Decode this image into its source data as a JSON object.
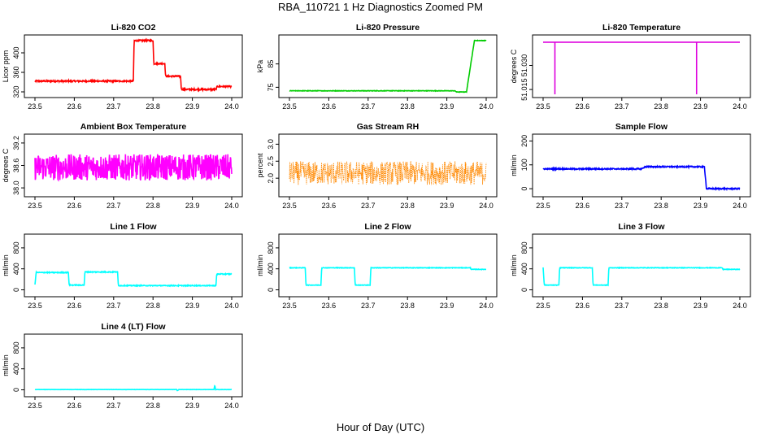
{
  "title": "RBA_110721  1 Hz Diagnostics Zoomed PM",
  "xlabel": "Hour of Day (UTC)",
  "chart_data": [
    {
      "type": "line",
      "title": "Li-820 CO2",
      "ylabel": "Licor ppm",
      "color": "#ff0000",
      "xlim": [
        23.5,
        24.0
      ],
      "ylim": [
        315,
        430
      ],
      "xticks": [
        "23.5",
        "23.6",
        "23.7",
        "23.8",
        "23.9",
        "24.0"
      ],
      "yticks": [
        320,
        360,
        400
      ],
      "segments": [
        [
          23.5,
          342
        ],
        [
          23.75,
          342
        ],
        [
          23.752,
          425
        ],
        [
          23.8,
          425
        ],
        [
          23.802,
          378
        ],
        [
          23.83,
          378
        ],
        [
          23.832,
          352
        ],
        [
          23.87,
          352
        ],
        [
          23.872,
          325
        ],
        [
          23.96,
          325
        ],
        [
          23.963,
          331
        ],
        [
          24.0,
          331
        ]
      ],
      "noise": 1.5
    },
    {
      "type": "line",
      "title": "Li-820 Pressure",
      "ylabel": "kPa",
      "color": "#00cc00",
      "xlim": [
        23.5,
        24.0
      ],
      "ylim": [
        72,
        96
      ],
      "xticks": [
        "23.5",
        "23.6",
        "23.7",
        "23.8",
        "23.9",
        "24.0"
      ],
      "yticks": [
        75,
        85
      ],
      "segments": [
        [
          23.5,
          73.5
        ],
        [
          23.92,
          73.5
        ],
        [
          23.925,
          73
        ],
        [
          23.95,
          73
        ],
        [
          23.97,
          95
        ],
        [
          24.0,
          95
        ]
      ],
      "noise": 0.1
    },
    {
      "type": "line",
      "title": "Li-820 Temperature",
      "ylabel": "degrees C",
      "color": "#dd00dd",
      "xlim": [
        23.5,
        24.0
      ],
      "ylim": [
        51.012,
        51.047
      ],
      "xticks": [
        "23.5",
        "23.6",
        "23.7",
        "23.8",
        "23.9",
        "24.0"
      ],
      "yticks": [
        "51.015",
        "51.030"
      ],
      "segments": [
        [
          23.5,
          51.0445
        ],
        [
          24.0,
          51.0445
        ]
      ],
      "spikes": [
        [
          23.53,
          51.012
        ],
        [
          23.89,
          51.012
        ]
      ],
      "noise": 0.0
    },
    {
      "type": "line",
      "title": "Ambient Box Temperature",
      "ylabel": "degrees C",
      "color": "#ff00ff",
      "xlim": [
        23.5,
        24.0
      ],
      "ylim": [
        37.85,
        39.35
      ],
      "xticks": [
        "23.5",
        "23.6",
        "23.7",
        "23.8",
        "23.9",
        "24.0"
      ],
      "yticks": [
        "38.0",
        "38.6",
        "39.2"
      ],
      "segments": [
        [
          23.5,
          38.55
        ],
        [
          24.0,
          38.55
        ]
      ],
      "noise": 0.35
    },
    {
      "type": "line",
      "title": "Gas Stream RH",
      "ylabel": "percent",
      "color": "#ff8800",
      "xlim": [
        23.5,
        24.0
      ],
      "ylim": [
        1.55,
        3.2
      ],
      "xticks": [
        "23.5",
        "23.6",
        "23.7",
        "23.8",
        "23.9",
        "24.0"
      ],
      "yticks": [
        "2.0",
        "2.5",
        "3.0"
      ],
      "segments": [
        [
          23.5,
          2.15
        ],
        [
          24.0,
          2.15
        ]
      ],
      "noise": 0.35,
      "points": true
    },
    {
      "type": "line",
      "title": "Sample Flow",
      "ylabel": "ml/min",
      "color": "#0000ff",
      "xlim": [
        23.5,
        24.0
      ],
      "ylim": [
        -20,
        215
      ],
      "xticks": [
        "23.5",
        "23.6",
        "23.7",
        "23.8",
        "23.9",
        "24.0"
      ],
      "yticks": [
        0,
        100,
        200
      ],
      "segments": [
        [
          23.5,
          83
        ],
        [
          23.75,
          83
        ],
        [
          23.76,
          92
        ],
        [
          23.91,
          92
        ],
        [
          23.915,
          0
        ],
        [
          24.0,
          0
        ]
      ],
      "noise": 2.5
    },
    {
      "type": "line",
      "title": "Line 1 Flow",
      "ylabel": "ml/min",
      "color": "#00ffff",
      "xlim": [
        23.5,
        24.0
      ],
      "ylim": [
        -70,
        1000
      ],
      "xticks": [
        "23.5",
        "23.6",
        "23.7",
        "23.8",
        "23.9",
        "24.0"
      ],
      "yticks": [
        0,
        400,
        800
      ],
      "segments": [
        [
          23.5,
          100
        ],
        [
          23.503,
          330
        ],
        [
          23.585,
          330
        ],
        [
          23.587,
          90
        ],
        [
          23.625,
          90
        ],
        [
          23.627,
          340
        ],
        [
          23.71,
          340
        ],
        [
          23.712,
          80
        ],
        [
          23.96,
          80
        ],
        [
          23.962,
          300
        ],
        [
          24.0,
          300
        ]
      ],
      "noise": 8
    },
    {
      "type": "line",
      "title": "Line 2 Flow",
      "ylabel": "ml/min",
      "color": "#00ffff",
      "xlim": [
        23.5,
        24.0
      ],
      "ylim": [
        -70,
        1000
      ],
      "xticks": [
        "23.5",
        "23.6",
        "23.7",
        "23.8",
        "23.9",
        "24.0"
      ],
      "yticks": [
        0,
        400,
        800
      ],
      "segments": [
        [
          23.5,
          420
        ],
        [
          23.54,
          420
        ],
        [
          23.542,
          90
        ],
        [
          23.58,
          90
        ],
        [
          23.582,
          420
        ],
        [
          23.665,
          420
        ],
        [
          23.667,
          90
        ],
        [
          23.705,
          90
        ],
        [
          23.707,
          420
        ],
        [
          23.96,
          420
        ],
        [
          23.962,
          390
        ],
        [
          24.0,
          390
        ]
      ],
      "noise": 5
    },
    {
      "type": "line",
      "title": "Line 3 Flow",
      "ylabel": "ml/min",
      "color": "#00ffff",
      "xlim": [
        23.5,
        24.0
      ],
      "ylim": [
        -70,
        1000
      ],
      "xticks": [
        "23.5",
        "23.6",
        "23.7",
        "23.8",
        "23.9",
        "24.0"
      ],
      "yticks": [
        0,
        400,
        800
      ],
      "segments": [
        [
          23.5,
          430
        ],
        [
          23.503,
          90
        ],
        [
          23.54,
          90
        ],
        [
          23.542,
          420
        ],
        [
          23.625,
          420
        ],
        [
          23.627,
          90
        ],
        [
          23.665,
          90
        ],
        [
          23.667,
          420
        ],
        [
          23.955,
          420
        ],
        [
          23.957,
          390
        ],
        [
          24.0,
          390
        ]
      ],
      "noise": 5
    },
    {
      "type": "line",
      "title": "Line 4 (LT) Flow",
      "ylabel": "ml/min",
      "color": "#00ffff",
      "xlim": [
        23.5,
        24.0
      ],
      "ylim": [
        -70,
        1000
      ],
      "xticks": [
        "23.5",
        "23.6",
        "23.7",
        "23.8",
        "23.9",
        "24.0"
      ],
      "yticks": [
        0,
        400,
        800
      ],
      "segments": [
        [
          23.5,
          5
        ],
        [
          23.86,
          5
        ],
        [
          23.862,
          -20
        ],
        [
          23.865,
          5
        ],
        [
          23.955,
          5
        ],
        [
          23.957,
          90
        ],
        [
          23.959,
          5
        ],
        [
          24.0,
          5
        ]
      ],
      "noise": 2
    }
  ]
}
